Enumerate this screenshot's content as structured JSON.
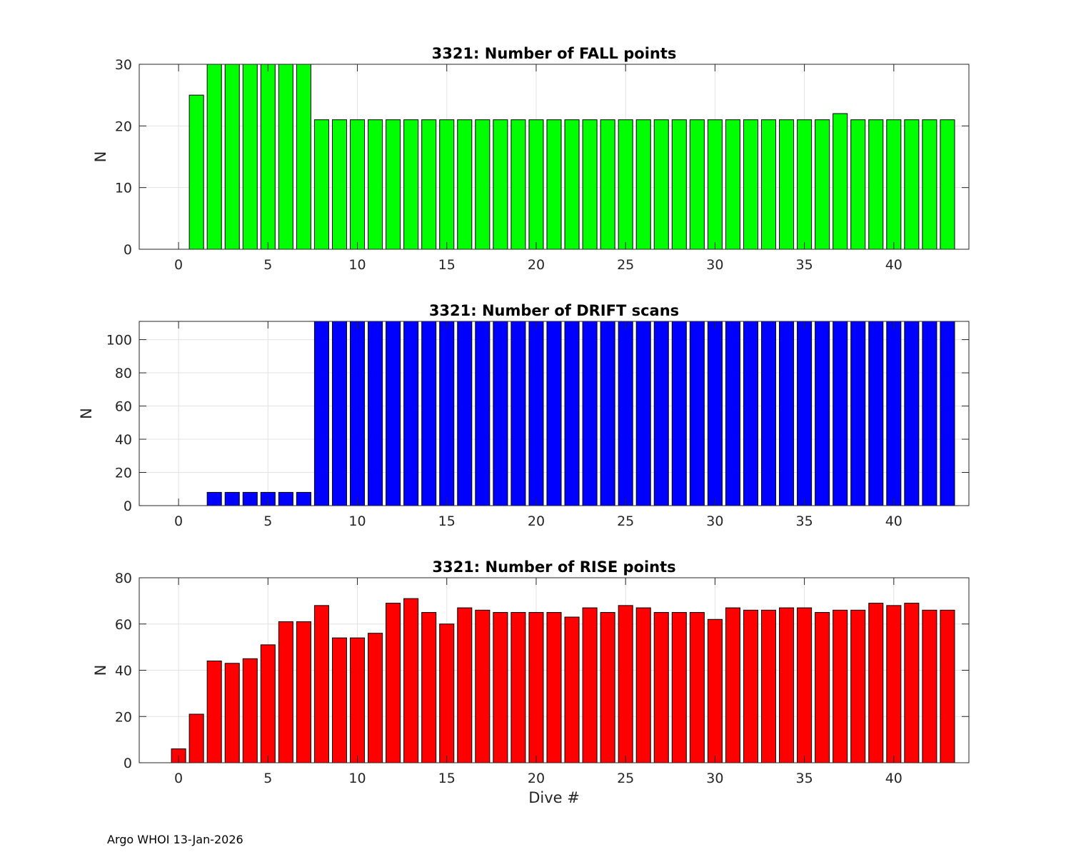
{
  "footer": "Argo WHOI 13-Jan-2026",
  "chart_data": [
    {
      "type": "bar",
      "title": "3321: Number of FALL points",
      "xlabel": "",
      "ylabel": "N",
      "xlim": [
        -2.2,
        44.2
      ],
      "ylim": [
        0,
        30
      ],
      "xticks": [
        0,
        5,
        10,
        15,
        20,
        25,
        30,
        35,
        40
      ],
      "yticks": [
        0,
        10,
        20,
        30
      ],
      "grid": true,
      "bar_color": "#00ff00",
      "x": [
        0,
        1,
        2,
        3,
        4,
        5,
        6,
        7,
        8,
        9,
        10,
        11,
        12,
        13,
        14,
        15,
        16,
        17,
        18,
        19,
        20,
        21,
        22,
        23,
        24,
        25,
        26,
        27,
        28,
        29,
        30,
        31,
        32,
        33,
        34,
        35,
        36,
        37,
        38,
        39,
        40,
        41,
        42,
        43
      ],
      "values": [
        0,
        25,
        30,
        30,
        30,
        30,
        30,
        30,
        21,
        21,
        21,
        21,
        21,
        21,
        21,
        21,
        21,
        21,
        21,
        21,
        21,
        21,
        21,
        21,
        21,
        21,
        21,
        21,
        21,
        21,
        21,
        21,
        21,
        21,
        21,
        21,
        21,
        22,
        21,
        21,
        21,
        21,
        21,
        21
      ]
    },
    {
      "type": "bar",
      "title": "3321: Number of DRIFT scans",
      "xlabel": "",
      "ylabel": "N",
      "xlim": [
        -2.2,
        44.2
      ],
      "ylim": [
        0,
        111
      ],
      "xticks": [
        0,
        5,
        10,
        15,
        20,
        25,
        30,
        35,
        40
      ],
      "yticks": [
        0,
        20,
        40,
        60,
        80,
        100
      ],
      "grid": true,
      "bar_color": "#0000ff",
      "x": [
        -1,
        0,
        1,
        2,
        3,
        4,
        5,
        6,
        7,
        8,
        9,
        10,
        11,
        12,
        13,
        14,
        15,
        16,
        17,
        18,
        19,
        20,
        21,
        22,
        23,
        24,
        25,
        26,
        27,
        28,
        29,
        30,
        31,
        32,
        33,
        34,
        35,
        36,
        37,
        38,
        39,
        40,
        41,
        42,
        43
      ],
      "values": [
        0,
        0,
        0,
        8,
        8,
        8,
        8,
        8,
        8,
        111,
        111,
        111,
        111,
        111,
        111,
        111,
        111,
        111,
        111,
        111,
        111,
        111,
        111,
        111,
        111,
        111,
        111,
        111,
        111,
        111,
        111,
        111,
        111,
        111,
        111,
        111,
        111,
        111,
        111,
        111,
        111,
        111,
        111,
        111,
        111
      ]
    },
    {
      "type": "bar",
      "title": "3321: Number of RISE points",
      "xlabel": "Dive #",
      "ylabel": "N",
      "xlim": [
        -2.2,
        44.2
      ],
      "ylim": [
        0,
        80
      ],
      "xticks": [
        0,
        5,
        10,
        15,
        20,
        25,
        30,
        35,
        40
      ],
      "yticks": [
        0,
        20,
        40,
        60,
        80
      ],
      "grid": true,
      "bar_color": "#ff0000",
      "x": [
        0,
        1,
        2,
        3,
        4,
        5,
        6,
        7,
        8,
        9,
        10,
        11,
        12,
        13,
        14,
        15,
        16,
        17,
        18,
        19,
        20,
        21,
        22,
        23,
        24,
        25,
        26,
        27,
        28,
        29,
        30,
        31,
        32,
        33,
        34,
        35,
        36,
        37,
        38,
        39,
        40,
        41,
        42,
        43
      ],
      "values": [
        6,
        21,
        44,
        43,
        45,
        51,
        61,
        61,
        68,
        54,
        54,
        56,
        69,
        71,
        65,
        60,
        67,
        66,
        65,
        65,
        65,
        65,
        63,
        67,
        65,
        68,
        67,
        65,
        65,
        65,
        62,
        67,
        66,
        66,
        67,
        67,
        65,
        66,
        66,
        69,
        68,
        69,
        66,
        66
      ]
    }
  ]
}
